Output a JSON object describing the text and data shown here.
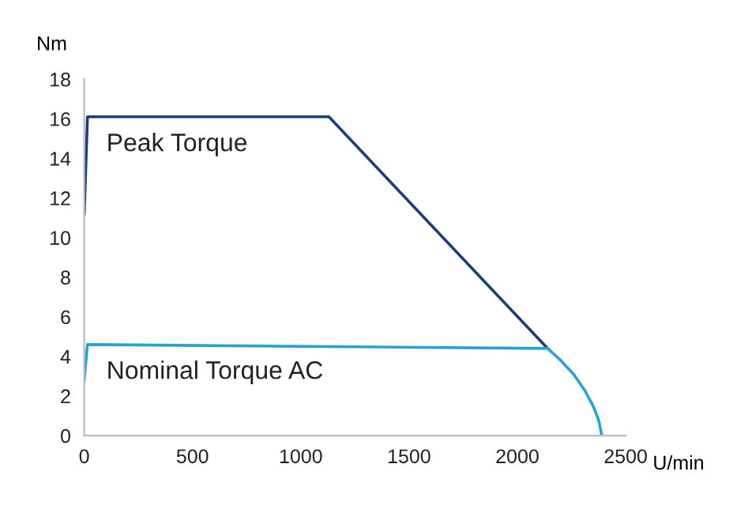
{
  "chart_data": {
    "type": "line",
    "xlabel": "U/min",
    "ylabel": "Nm",
    "series": [
      {
        "name": "Peak Torque",
        "color": "#1d3f78",
        "x": [
          0,
          15,
          1130,
          2140
        ],
        "values": [
          11.2,
          16.1,
          16.1,
          4.4
        ]
      },
      {
        "name": "Nominal Torque AC",
        "color": "#2e9fd3",
        "x": [
          0,
          15,
          2140,
          2200,
          2260,
          2310,
          2350,
          2375,
          2390
        ],
        "values": [
          2.8,
          4.6,
          4.4,
          3.8,
          3.1,
          2.3,
          1.5,
          0.8,
          0
        ]
      }
    ],
    "xlim": [
      0,
      2500
    ],
    "xticks": [
      0,
      500,
      1000,
      1500,
      2000,
      2500
    ],
    "ylim": [
      0,
      18
    ],
    "yticks": [
      0,
      2,
      4,
      6,
      8,
      10,
      12,
      14,
      16,
      18
    ],
    "grid": false,
    "legend": false,
    "marker": "none",
    "line_style": "solid"
  }
}
